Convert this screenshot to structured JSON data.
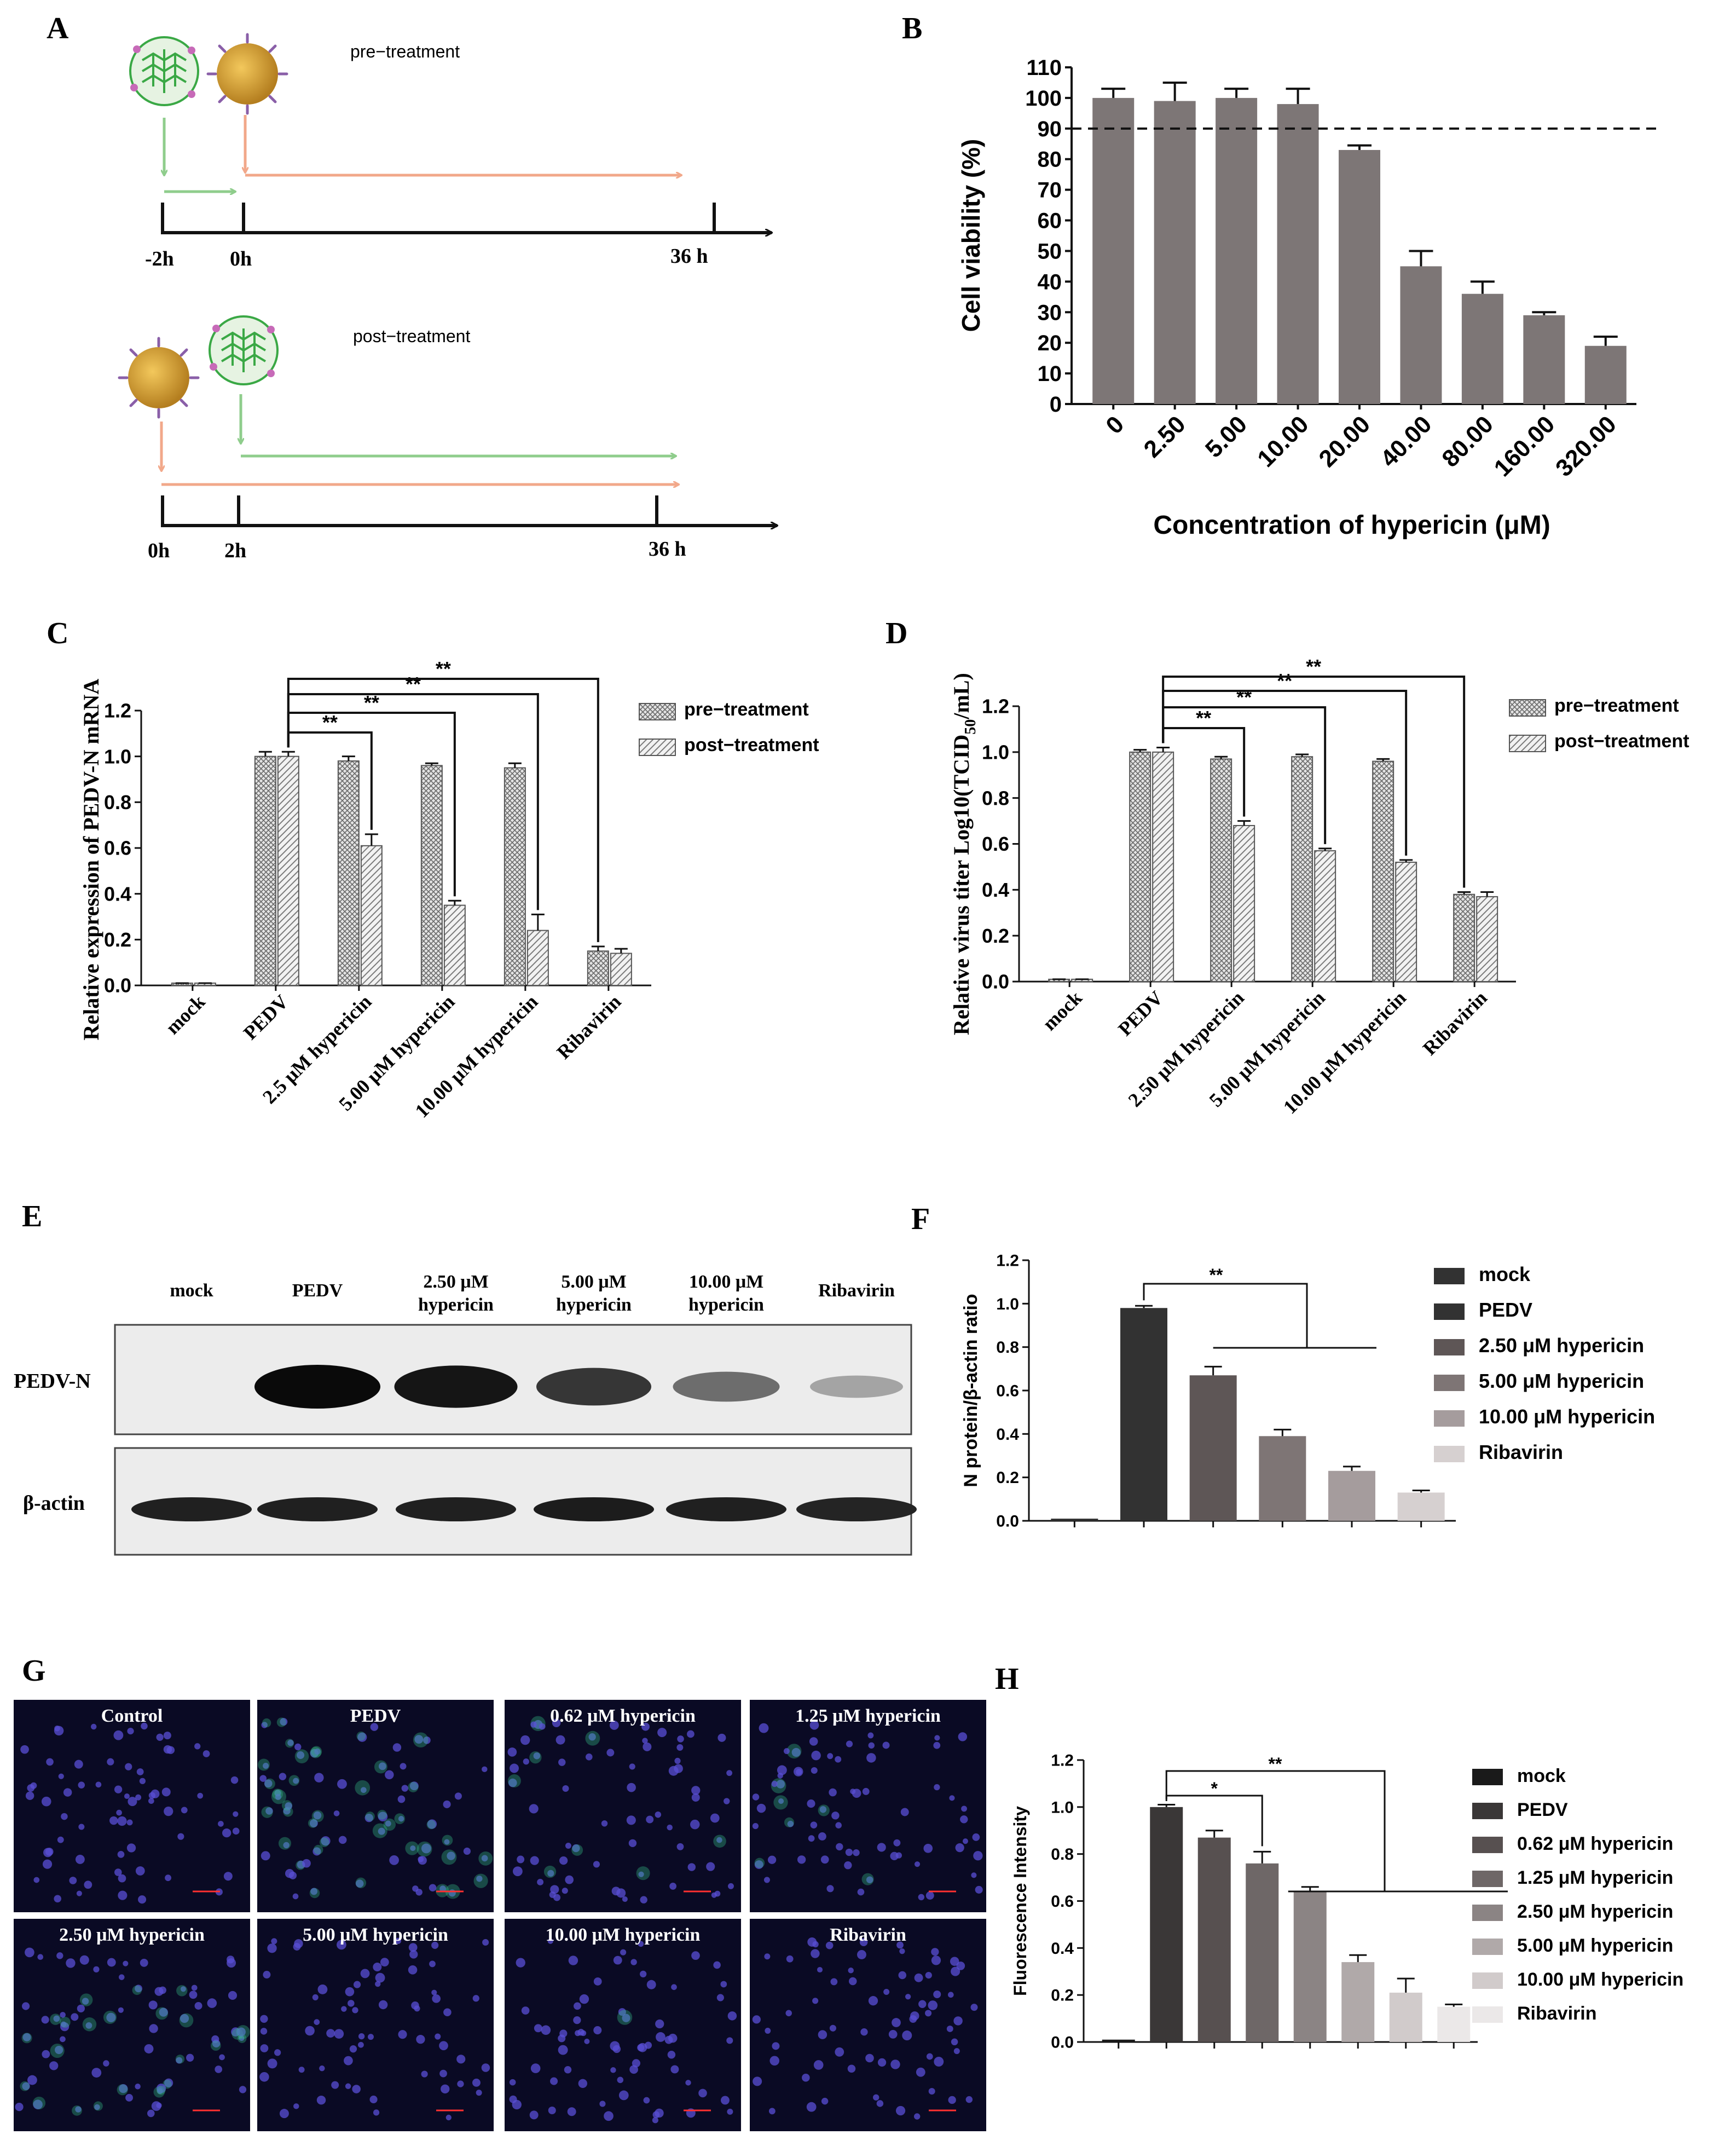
{
  "panels": {
    "A": {
      "letter": "A",
      "pre": {
        "title": "pre−treatment",
        "t0": "-2h",
        "t1": "0h",
        "t2": "36 h"
      },
      "post": {
        "title": "post−treatment",
        "t0": "0h",
        "t1": "2h",
        "t2": "36 h"
      }
    },
    "B": {
      "letter": "B"
    },
    "C": {
      "letter": "C"
    },
    "D": {
      "letter": "D"
    },
    "E": {
      "letter": "E",
      "columns": [
        [
          "mock"
        ],
        [
          "PEDV"
        ],
        [
          "2.50 μM",
          "hypericin"
        ],
        [
          "5.00 μM",
          "hypericin"
        ],
        [
          "10.00 μM",
          "hypericin"
        ],
        [
          "Ribavirin"
        ]
      ],
      "rows": [
        "PEDV-N",
        "β-actin"
      ],
      "band_intensity": {
        "PEDV-N": [
          0,
          1.0,
          0.95,
          0.8,
          0.55,
          0.3
        ],
        "β-actin": [
          0.9,
          0.9,
          0.9,
          0.92,
          0.9,
          0.88
        ]
      }
    },
    "F": {
      "letter": "F"
    },
    "G": {
      "letter": "G",
      "tiles": [
        "Control",
        "PEDV",
        "0.62 μM hypericin",
        "1.25 μM hypericin",
        "2.50 μM hypericin",
        "5.00 μM hypericin",
        "10.00 μM hypericin",
        "Ribavirin"
      ],
      "green_signal": [
        0,
        1.0,
        0.2,
        0.15,
        0.5,
        0.05,
        0.05,
        0.03
      ]
    },
    "H": {
      "letter": "H"
    }
  },
  "chart_data": [
    {
      "id": "B",
      "type": "bar",
      "categories": [
        "0",
        "2.50",
        "5.00",
        "10.00",
        "20.00",
        "40.00",
        "80.00",
        "160.00",
        "320.00"
      ],
      "values": [
        100,
        99,
        100,
        98,
        83,
        45,
        36,
        29,
        19
      ],
      "errors": [
        3,
        6,
        3,
        5,
        1.5,
        5,
        4,
        1,
        3
      ],
      "xlabel": "Concentration of hypericin (μM)",
      "ylabel": "Cell viability (%)",
      "ylim": [
        0,
        110
      ],
      "yticks": [
        "0",
        "10",
        "20",
        "30",
        "40",
        "50",
        "60",
        "70",
        "80",
        "90",
        "100",
        "110"
      ],
      "reference_line": 90,
      "color": "#7d7676"
    },
    {
      "id": "C",
      "type": "bar",
      "categories": [
        "mock",
        "PEDV",
        "2.5 μM hypericin",
        "5.00 μM hypericin",
        "10.00 μM hypericin",
        "Ribavirin"
      ],
      "series": [
        {
          "name": "pre−treatment",
          "values": [
            0.01,
            1.0,
            0.98,
            0.96,
            0.95,
            0.15
          ],
          "errors": [
            0,
            0.02,
            0.02,
            0.01,
            0.02,
            0.02
          ]
        },
        {
          "name": "post−treatment",
          "values": [
            0.01,
            1.0,
            0.61,
            0.35,
            0.24,
            0.14
          ],
          "errors": [
            0,
            0.02,
            0.05,
            0.02,
            0.07,
            0.02
          ]
        }
      ],
      "ylabel": "Relative expression of PEDV-N mRNA",
      "ylim": [
        0,
        1.2
      ],
      "yticks": [
        "0.0",
        "0.2",
        "0.4",
        "0.6",
        "0.8",
        "1.0",
        "1.2"
      ],
      "significance": [
        "**",
        "**",
        "**",
        "**"
      ],
      "legend_position": "top-right"
    },
    {
      "id": "D",
      "type": "bar",
      "categories": [
        "mock",
        "PEDV",
        "2.50 μM hypericin",
        "5.00 μM hypericin",
        "10.00 μM hypericin",
        "Ribavirin"
      ],
      "series": [
        {
          "name": "pre−treatment",
          "values": [
            0.01,
            1.0,
            0.97,
            0.98,
            0.96,
            0.38
          ],
          "errors": [
            0,
            0.01,
            0.01,
            0.01,
            0.01,
            0.01
          ]
        },
        {
          "name": "post−treatment",
          "values": [
            0.01,
            1.0,
            0.68,
            0.57,
            0.52,
            0.37
          ],
          "errors": [
            0,
            0.02,
            0.02,
            0.01,
            0.01,
            0.02
          ]
        }
      ],
      "ylabel": "Relative virus titer Log10(TCID",
      "ylabel_sub": "50",
      "ylabel_end": "/mL)",
      "ylim": [
        0,
        1.2
      ],
      "yticks": [
        "0.0",
        "0.2",
        "0.4",
        "0.6",
        "0.8",
        "1.0",
        "1.2"
      ],
      "significance": [
        "**",
        "**",
        "**",
        "**"
      ],
      "legend_position": "top-right"
    },
    {
      "id": "F",
      "type": "bar",
      "categories": [
        "mock",
        "PEDV",
        "2.50 μM hypericin",
        "5.00 μM hypericin",
        "10.00 μM hypericin",
        "Ribavirin"
      ],
      "values": [
        0.01,
        0.98,
        0.67,
        0.39,
        0.23,
        0.13
      ],
      "errors": [
        0,
        0.01,
        0.04,
        0.03,
        0.02,
        0.01
      ],
      "colors": [
        "#323232",
        "#323232",
        "#5e5656",
        "#7e7575",
        "#a59c9d",
        "#d6d0d0"
      ],
      "ylabel": "N protein/β-actin ratio",
      "ylim": [
        0,
        1.2
      ],
      "yticks": [
        "0.0",
        "0.2",
        "0.4",
        "0.6",
        "0.8",
        "1.0",
        "1.2"
      ],
      "significance": [
        "**"
      ],
      "legend_position": "right"
    },
    {
      "id": "H",
      "type": "bar",
      "categories": [
        "mock",
        "PEDV",
        "0.62 μM hypericin",
        "1.25 μM hypericin",
        "2.50 μM hypericin",
        "5.00 μM hypericin",
        "10.00 μM hypericin",
        "Ribavirin"
      ],
      "values": [
        0.01,
        1.0,
        0.87,
        0.76,
        0.64,
        0.34,
        0.21,
        0.15
      ],
      "errors": [
        0,
        0.01,
        0.03,
        0.05,
        0.02,
        0.03,
        0.06,
        0.01
      ],
      "colors": [
        "#1a1a1a",
        "#3a3737",
        "#575050",
        "#6e6767",
        "#8b8484",
        "#b0a9a9",
        "#d1cbcb",
        "#ebe8e8"
      ],
      "ylabel": "Fluorescence Intensity",
      "ylim": [
        0,
        1.2
      ],
      "yticks": [
        "0.0",
        "0.2",
        "0.4",
        "0.6",
        "0.8",
        "1.0",
        "1.2"
      ],
      "significance": [
        "*",
        "**"
      ],
      "legend_position": "right"
    }
  ]
}
